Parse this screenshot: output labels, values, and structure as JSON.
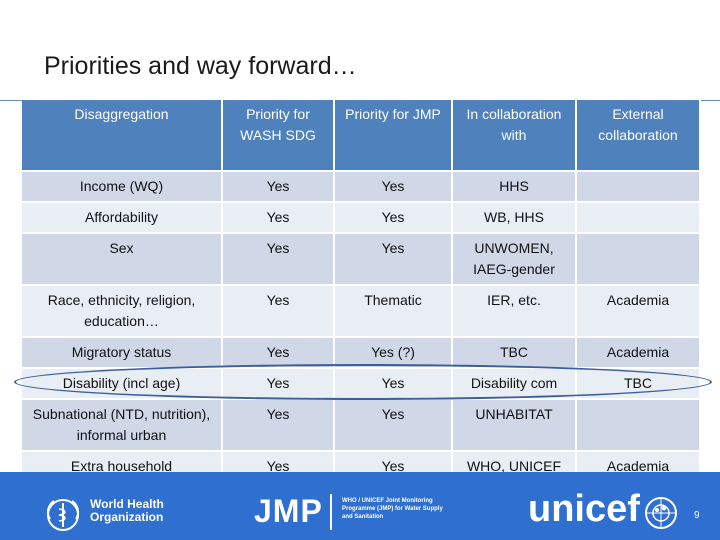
{
  "title": "Priorities and way forward…",
  "table": {
    "headers": [
      "Disaggregation",
      "Priority for WASH SDG",
      "Priority for JMP",
      "In collaboration with",
      "External collaboration"
    ],
    "rows": [
      [
        "Income (WQ)",
        "Yes",
        "Yes",
        "HHS",
        ""
      ],
      [
        "Affordability",
        "Yes",
        "Yes",
        "WB, HHS",
        ""
      ],
      [
        "Sex",
        "Yes",
        "Yes",
        "UNWOMEN, IAEG-gender",
        ""
      ],
      [
        "Race, ethnicity, religion, education…",
        "Yes",
        "Thematic",
        "IER, etc.",
        "Academia"
      ],
      [
        "Migratory status",
        "Yes",
        "Yes (?)",
        "TBC",
        "Academia"
      ],
      [
        "Disability (incl age)",
        "Yes",
        "Yes",
        "Disability com",
        "TBC"
      ],
      [
        "Subnational (NTD, nutrition), informal urban",
        "Yes",
        "Yes",
        "UNHABITAT",
        ""
      ],
      [
        "Extra household",
        "Yes",
        "Yes",
        "WHO, UNICEF",
        "Academia"
      ]
    ]
  },
  "footer": {
    "who_label": "World Health\nOrganization",
    "jmp_label": "JMP",
    "jmp_description": "WHO / UNICEF Joint Monitoring\nProgramme (JMP) for Water Supply\nand Sanitation",
    "unicef_label": "unicef",
    "page_number": "9"
  },
  "colors": {
    "header_blue": "#4f81bd",
    "row_dark": "#d0d8e8",
    "row_light": "#e9edf4",
    "footer_blue": "#2f6fcf"
  },
  "icons": [
    "who-emblem-icon",
    "unicef-emblem-icon"
  ]
}
